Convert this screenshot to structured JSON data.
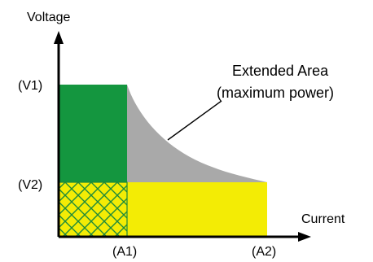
{
  "axes": {
    "y_label": "Voltage",
    "x_label": "Current"
  },
  "ticks": {
    "v1": "(V1)",
    "v2": "(V2)",
    "a1": "(A1)",
    "a2": "(A2)"
  },
  "annotation": {
    "line1": "Extended Area",
    "line2": "(maximum power)"
  },
  "colors": {
    "green_region": "#14963f",
    "yellow_region": "#f3ec05",
    "gray_region": "#a9a9a9",
    "hatch": "#1e8a3a",
    "axis": "#000000"
  }
}
